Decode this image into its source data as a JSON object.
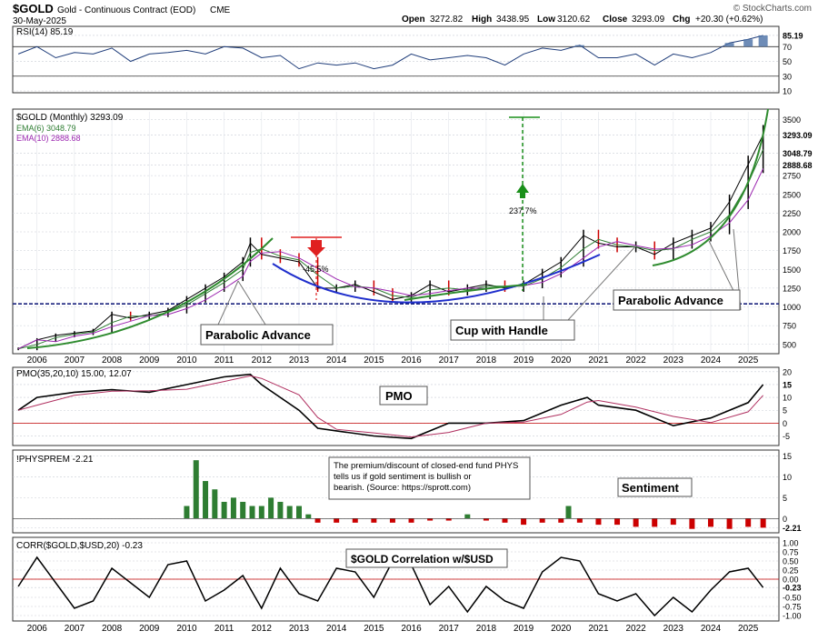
{
  "header": {
    "symbol": "$GOLD",
    "name": "Gold - Continuous Contract (EOD)",
    "exchange": "CME",
    "date": "30-May-2025",
    "open_label": "Open",
    "open": "3272.82",
    "high_label": "High",
    "high": "3438.95",
    "low_label": "Low",
    "low": "3120.62",
    "close_label": "Close",
    "close": "3293.09",
    "chg_label": "Chg",
    "chg": "+20.30 (+0.62%)",
    "watermark": "© StockCharts.com"
  },
  "colors": {
    "price_up": "#000000",
    "price_down": "#cc0000",
    "ema6": "#2e7d32",
    "ema10": "#9c27b0",
    "rsi_fill": "#4a6fa5",
    "green_arc": "#2e8b2e",
    "blue_arc": "#1f2ecc",
    "target_arrow": "#1a8f1a",
    "drop_arrow": "#e02020",
    "hist_pos": "#2e7d32",
    "hist_neg": "#cc0000"
  },
  "chart_data": [
    {
      "id": "rsi",
      "type": "line",
      "title": "RSI(14) 85.19",
      "current": 85.19,
      "ylim": [
        10,
        95
      ],
      "y_ticks": [
        "85.19",
        "70",
        "50",
        "30",
        "10"
      ],
      "levels": [
        70,
        30
      ],
      "x": [
        2005.5,
        2006,
        2006.5,
        2007,
        2007.5,
        2008,
        2008.5,
        2009,
        2009.5,
        2010,
        2010.5,
        2011,
        2011.5,
        2012,
        2012.5,
        2013,
        2013.5,
        2014,
        2014.5,
        2015,
        2015.5,
        2016,
        2016.5,
        2017,
        2017.5,
        2018,
        2018.5,
        2019,
        2019.5,
        2020,
        2020.5,
        2021,
        2021.5,
        2022,
        2022.5,
        2023,
        2023.5,
        2024,
        2024.5,
        2025,
        2025.4
      ],
      "values": [
        60,
        70,
        55,
        62,
        60,
        68,
        50,
        60,
        62,
        65,
        60,
        70,
        68,
        55,
        58,
        40,
        48,
        45,
        48,
        40,
        45,
        60,
        52,
        55,
        58,
        55,
        45,
        60,
        68,
        65,
        72,
        55,
        55,
        60,
        45,
        60,
        55,
        62,
        75,
        80,
        85.19
      ]
    },
    {
      "id": "price",
      "type": "line",
      "title": "$GOLD (Monthly) 3293.09",
      "legend": [
        "EMA(6) 3048.79",
        "EMA(10) 2888.68"
      ],
      "ylim": [
        400,
        3600
      ],
      "y_ticks": [
        "3500",
        "3293.09",
        "3048.79",
        "2888.68",
        "2750",
        "2500",
        "2250",
        "2000",
        "1750",
        "1500",
        "1250",
        "1000",
        "750",
        "500"
      ],
      "x_ticks": [
        "2006",
        "2007",
        "2008",
        "2009",
        "2010",
        "2011",
        "2012",
        "2013",
        "2014",
        "2015",
        "2016",
        "2017",
        "2018",
        "2019",
        "2020",
        "2021",
        "2022",
        "2023",
        "2024",
        "2025"
      ],
      "x": [
        2005.5,
        2006,
        2006.5,
        2007,
        2007.5,
        2008,
        2008.5,
        2009,
        2009.5,
        2010,
        2010.5,
        2011,
        2011.5,
        2011.7,
        2012,
        2012.5,
        2013,
        2013.5,
        2014,
        2014.5,
        2015,
        2015.5,
        2016,
        2016.5,
        2017,
        2017.5,
        2018,
        2018.5,
        2019,
        2019.5,
        2020,
        2020.6,
        2021,
        2021.5,
        2022,
        2022.5,
        2023,
        2023.5,
        2024,
        2024.5,
        2025,
        2025.4
      ],
      "values": [
        440,
        560,
        620,
        650,
        680,
        900,
        850,
        900,
        950,
        1100,
        1250,
        1400,
        1600,
        1850,
        1700,
        1650,
        1600,
        1250,
        1250,
        1300,
        1200,
        1100,
        1150,
        1300,
        1200,
        1250,
        1300,
        1250,
        1300,
        1450,
        1600,
        1950,
        1850,
        1800,
        1800,
        1700,
        1850,
        1950,
        2050,
        2400,
        2900,
        3293.09
      ],
      "annotations": [
        "Parabolic Advance",
        "Parabolic Advance",
        "Cup with Handle",
        "-45.5%",
        "237.7%"
      ]
    },
    {
      "id": "pmo",
      "type": "line",
      "title": "PMO(35,20,10) 15.00, 12.07",
      "label": "PMO",
      "ylim": [
        -8,
        21
      ],
      "y_ticks": [
        "20",
        "15",
        "10",
        "5",
        "0",
        "-5"
      ],
      "current": [
        "15.00",
        "12.07"
      ],
      "x": [
        2005.5,
        2006,
        2007,
        2008,
        2009,
        2010,
        2011,
        2011.7,
        2012,
        2013,
        2013.5,
        2014,
        2015,
        2016,
        2017,
        2018,
        2019,
        2020,
        2020.7,
        2021,
        2022,
        2023,
        2024,
        2025,
        2025.4
      ],
      "values": [
        5,
        10,
        12,
        13,
        12,
        15,
        18,
        19,
        15,
        5,
        -2,
        -3,
        -5,
        -6,
        0,
        0,
        1,
        7,
        10,
        7,
        5,
        -1,
        2,
        8,
        15
      ]
    },
    {
      "id": "physprem",
      "type": "bar",
      "title": "!PHYSPREM -2.21",
      "label": "Sentiment",
      "note": "The premium/discount of closed-end fund PHYS tells us if gold sentiment is bullish or bearish. (Source: https://sprott.com)",
      "ylim": [
        -3,
        16
      ],
      "y_ticks": [
        "15",
        "10",
        "5",
        "0",
        "-2.21"
      ],
      "current": -2.21,
      "x": [
        2010,
        2010.25,
        2010.5,
        2010.75,
        2011,
        2011.25,
        2011.5,
        2011.75,
        2012,
        2012.25,
        2012.5,
        2012.75,
        2013,
        2013.25,
        2013.5,
        2014,
        2014.5,
        2015,
        2015.5,
        2016,
        2016.5,
        2017,
        2017.5,
        2018,
        2018.5,
        2019,
        2019.5,
        2020,
        2020.2,
        2020.5,
        2021,
        2021.5,
        2022,
        2022.5,
        2023,
        2023.5,
        2024,
        2024.5,
        2025,
        2025.4
      ],
      "values": [
        3,
        14,
        9,
        7,
        4,
        5,
        4,
        3,
        3,
        5,
        4,
        3,
        3,
        1,
        -1,
        -1,
        -1,
        -1,
        -1,
        -1,
        -0.5,
        -0.5,
        1,
        -0.5,
        -1,
        -1.5,
        -1,
        -1,
        3,
        -1,
        -1.5,
        -1.5,
        -2,
        -2,
        -1.5,
        -2.5,
        -2,
        -2.5,
        -2,
        -2.21
      ]
    },
    {
      "id": "corr",
      "type": "line",
      "title": "CORR($GOLD,$USD,20) -0.23",
      "label": "$GOLD Correlation w/$USD",
      "ylim": [
        -1.1,
        1.1
      ],
      "y_ticks": [
        "1.00",
        "0.75",
        "0.50",
        "0.25",
        "0.00",
        "-0.23",
        "-0.50",
        "-0.75",
        "-1.00"
      ],
      "current": -0.23,
      "x": [
        2005.5,
        2006,
        2006.5,
        2007,
        2007.5,
        2008,
        2008.5,
        2009,
        2009.5,
        2010,
        2010.5,
        2011,
        2011.5,
        2012,
        2012.5,
        2013,
        2013.5,
        2014,
        2014.5,
        2015,
        2015.5,
        2016,
        2016.5,
        2017,
        2017.5,
        2018,
        2018.5,
        2019,
        2019.5,
        2020,
        2020.5,
        2021,
        2021.5,
        2022,
        2022.5,
        2023,
        2023.5,
        2024,
        2024.5,
        2025,
        2025.4
      ],
      "values": [
        -0.2,
        0.6,
        -0.1,
        -0.8,
        -0.6,
        0.3,
        -0.1,
        -0.5,
        0.4,
        0.5,
        -0.6,
        -0.3,
        0.1,
        -0.8,
        0.3,
        -0.4,
        -0.6,
        0.3,
        0.2,
        -0.5,
        0.5,
        0.4,
        -0.7,
        -0.2,
        -0.9,
        -0.2,
        -0.6,
        -0.8,
        0.2,
        0.6,
        0.5,
        -0.4,
        -0.6,
        -0.4,
        -1.0,
        -0.5,
        -0.9,
        -0.3,
        0.2,
        0.3,
        -0.23
      ]
    }
  ]
}
